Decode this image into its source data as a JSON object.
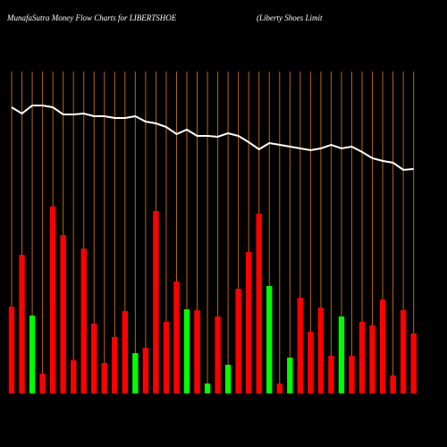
{
  "chart_data": {
    "type": "bar",
    "title": "MunafaSutra  Money Flow  Charts for LIBERTSHOE",
    "subtitle": "(Liberty Shoes Limit",
    "grid": true,
    "grid_color": "#b8660b",
    "background": "#000000",
    "ylim": [
      0,
      440
    ],
    "series": [
      {
        "name": "money flow",
        "type": "bar",
        "values": [
          97,
          155,
          87,
          22,
          209,
          177,
          37,
          162,
          78,
          34,
          63,
          92,
          45,
          51,
          204,
          80,
          125,
          94,
          93,
          11,
          86,
          32,
          117,
          158,
          201,
          120,
          11,
          40,
          107,
          69,
          96,
          42,
          86,
          42,
          80,
          76,
          105,
          20,
          93,
          67
        ],
        "colors": [
          "#ff0000",
          "#ff0000",
          "#00ff00",
          "#ff0000",
          "#ff0000",
          "#ff0000",
          "#ff0000",
          "#ff0000",
          "#ff0000",
          "#ff0000",
          "#ff0000",
          "#ff0000",
          "#00ff00",
          "#ff0000",
          "#ff0000",
          "#ff0000",
          "#ff0000",
          "#00ff00",
          "#ff0000",
          "#00ff00",
          "#ff0000",
          "#00ff00",
          "#ff0000",
          "#ff0000",
          "#ff0000",
          "#00ff00",
          "#ff0000",
          "#00ff00",
          "#ff0000",
          "#ff0000",
          "#ff0000",
          "#ff0000",
          "#00ff00",
          "#ff0000",
          "#ff0000",
          "#ff0000",
          "#ff0000",
          "#ff0000",
          "#ff0000",
          "#ff0000"
        ]
      },
      {
        "name": "price",
        "type": "line",
        "color": "#ffffff",
        "values": [
          320,
          313,
          322,
          322,
          320,
          312,
          312,
          313,
          310,
          310,
          308,
          308,
          310,
          304,
          302,
          298,
          290,
          295,
          288,
          288,
          287,
          291,
          288,
          281,
          273,
          280,
          278,
          276,
          274,
          272,
          274,
          278,
          274,
          276,
          270,
          263,
          260,
          258,
          250,
          251
        ]
      }
    ]
  }
}
